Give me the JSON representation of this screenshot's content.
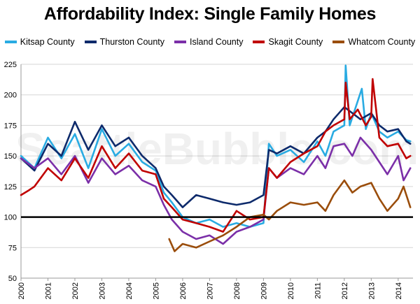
{
  "chart_data": {
    "type": "line",
    "title": "Affordability Index: Single Family Homes",
    "watermark": "SeattleBubble.com",
    "xlabel": "",
    "ylabel": "",
    "xlim": [
      2000,
      2014.55
    ],
    "ylim": [
      50,
      225
    ],
    "yticks": [
      50,
      75,
      100,
      125,
      150,
      175,
      200,
      225
    ],
    "xticks": [
      "2000",
      "2001",
      "2002",
      "2003",
      "2004",
      "2005",
      "2006",
      "2007",
      "2008",
      "2009",
      "2010",
      "2011",
      "2012",
      "2013",
      "2014"
    ],
    "reference_line": 100,
    "grid": "horizontal",
    "legend": "top",
    "series": [
      {
        "name": "Kitsap County",
        "color": "#29abe2",
        "x": [
          2000,
          2000.5,
          2001,
          2001.5,
          2002,
          2002.5,
          2003,
          2003.5,
          2004,
          2004.5,
          2005,
          2005.3,
          2005.6,
          2006,
          2006.5,
          2007,
          2007.5,
          2008,
          2008.5,
          2009,
          2009.2,
          2009.5,
          2010,
          2010.5,
          2011,
          2011.3,
          2011.6,
          2012,
          2012.05,
          2012.2,
          2012.5,
          2012.65,
          2012.8,
          2013,
          2013.3,
          2013.6,
          2014,
          2014.3,
          2014.45
        ],
        "y": [
          150,
          140,
          165,
          148,
          168,
          140,
          172,
          150,
          160,
          145,
          138,
          120,
          112,
          100,
          95,
          98,
          92,
          95,
          92,
          95,
          160,
          150,
          155,
          145,
          162,
          150,
          170,
          175,
          224,
          175,
          195,
          205,
          172,
          185,
          170,
          165,
          170,
          163,
          162
        ]
      },
      {
        "name": "Thurston County",
        "color": "#0d2a6b",
        "x": [
          2000,
          2000.5,
          2001,
          2001.5,
          2002,
          2002.5,
          2003,
          2003.5,
          2004,
          2004.5,
          2005,
          2005.3,
          2005.6,
          2006,
          2006.5,
          2007,
          2007.5,
          2008,
          2008.5,
          2009,
          2009.2,
          2009.5,
          2010,
          2010.5,
          2011,
          2011.3,
          2011.6,
          2012,
          2012.3,
          2012.6,
          2013,
          2013.3,
          2013.6,
          2014,
          2014.3,
          2014.45
        ],
        "y": [
          148,
          138,
          160,
          150,
          178,
          155,
          175,
          158,
          165,
          150,
          140,
          125,
          118,
          108,
          118,
          115,
          112,
          110,
          112,
          118,
          155,
          152,
          158,
          152,
          165,
          170,
          180,
          190,
          185,
          180,
          185,
          175,
          170,
          172,
          162,
          160
        ]
      },
      {
        "name": "Island County",
        "color": "#7b2fa8",
        "x": [
          2000,
          2000.5,
          2001,
          2001.5,
          2002,
          2002.5,
          2003,
          2003.5,
          2004,
          2004.5,
          2005,
          2005.3,
          2005.6,
          2006,
          2006.5,
          2007,
          2007.5,
          2008,
          2008.5,
          2009,
          2009.2,
          2009.5,
          2010,
          2010.5,
          2011,
          2011.3,
          2011.6,
          2012,
          2012.3,
          2012.6,
          2013,
          2013.3,
          2013.6,
          2014,
          2014.2,
          2014.45
        ],
        "y": [
          148,
          140,
          148,
          135,
          150,
          128,
          148,
          135,
          142,
          130,
          125,
          110,
          98,
          88,
          82,
          85,
          78,
          88,
          92,
          98,
          140,
          132,
          140,
          135,
          150,
          140,
          158,
          160,
          150,
          165,
          155,
          145,
          135,
          150,
          130,
          140
        ]
      },
      {
        "name": "Skagit County",
        "color": "#c00000",
        "x": [
          2000,
          2000.3,
          2000.5,
          2001,
          2001.5,
          2002,
          2002.5,
          2003,
          2003.5,
          2004,
          2004.5,
          2005,
          2005.3,
          2005.6,
          2006,
          2006.5,
          2007,
          2007.5,
          2008,
          2008.5,
          2009,
          2009.2,
          2009.5,
          2010,
          2010.5,
          2011,
          2011.3,
          2011.6,
          2012,
          2012.05,
          2012.2,
          2012.5,
          2012.8,
          2013,
          2013.05,
          2013.3,
          2013.6,
          2014,
          2014.3,
          2014.45
        ],
        "y": [
          118,
          122,
          125,
          140,
          130,
          148,
          132,
          158,
          140,
          152,
          138,
          135,
          115,
          108,
          98,
          95,
          92,
          88,
          105,
          98,
          100,
          140,
          132,
          145,
          152,
          158,
          170,
          175,
          180,
          210,
          180,
          188,
          175,
          182,
          213,
          165,
          158,
          160,
          148,
          150
        ]
      },
      {
        "name": "Whatcom County",
        "color": "#9a4d0b",
        "x": [
          2005.5,
          2005.7,
          2006,
          2006.5,
          2007,
          2007.5,
          2008,
          2008.5,
          2009,
          2009.2,
          2009.5,
          2010,
          2010.5,
          2011,
          2011.3,
          2011.6,
          2012,
          2012.3,
          2012.6,
          2013,
          2013.3,
          2013.6,
          2014,
          2014.2,
          2014.45
        ],
        "y": [
          82,
          72,
          78,
          75,
          80,
          85,
          92,
          100,
          102,
          98,
          105,
          112,
          110,
          112,
          105,
          118,
          130,
          120,
          125,
          128,
          115,
          105,
          115,
          125,
          108
        ]
      }
    ]
  }
}
